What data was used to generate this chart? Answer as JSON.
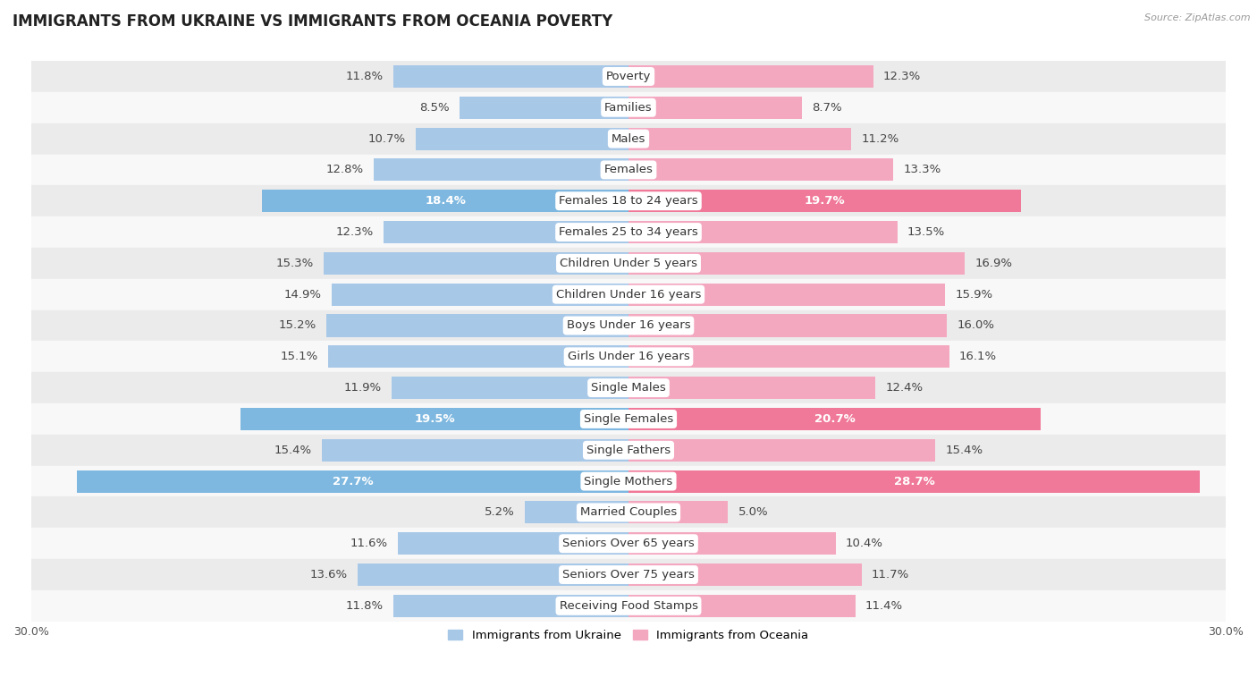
{
  "title": "IMMIGRANTS FROM UKRAINE VS IMMIGRANTS FROM OCEANIA POVERTY",
  "source": "Source: ZipAtlas.com",
  "categories": [
    "Poverty",
    "Families",
    "Males",
    "Females",
    "Females 18 to 24 years",
    "Females 25 to 34 years",
    "Children Under 5 years",
    "Children Under 16 years",
    "Boys Under 16 years",
    "Girls Under 16 years",
    "Single Males",
    "Single Females",
    "Single Fathers",
    "Single Mothers",
    "Married Couples",
    "Seniors Over 65 years",
    "Seniors Over 75 years",
    "Receiving Food Stamps"
  ],
  "ukraine_values": [
    11.8,
    8.5,
    10.7,
    12.8,
    18.4,
    12.3,
    15.3,
    14.9,
    15.2,
    15.1,
    11.9,
    19.5,
    15.4,
    27.7,
    5.2,
    11.6,
    13.6,
    11.8
  ],
  "oceania_values": [
    12.3,
    8.7,
    11.2,
    13.3,
    19.7,
    13.5,
    16.9,
    15.9,
    16.0,
    16.1,
    12.4,
    20.7,
    15.4,
    28.7,
    5.0,
    10.4,
    11.7,
    11.4
  ],
  "ukraine_color": "#a8c8e8",
  "oceania_color": "#f4a8c0",
  "ukraine_highlight_color": "#7eb8e0",
  "oceania_highlight_color": "#f07898",
  "highlight_rows": [
    4,
    11,
    13
  ],
  "background_color": "#ffffff",
  "row_odd_color": "#ebebeb",
  "row_even_color": "#f8f8f8",
  "xlim": 30.0,
  "bar_height": 0.72,
  "label_fontsize": 9.5,
  "value_fontsize": 9.5,
  "title_fontsize": 12,
  "legend_ukraine": "Immigrants from Ukraine",
  "legend_oceania": "Immigrants from Oceania"
}
